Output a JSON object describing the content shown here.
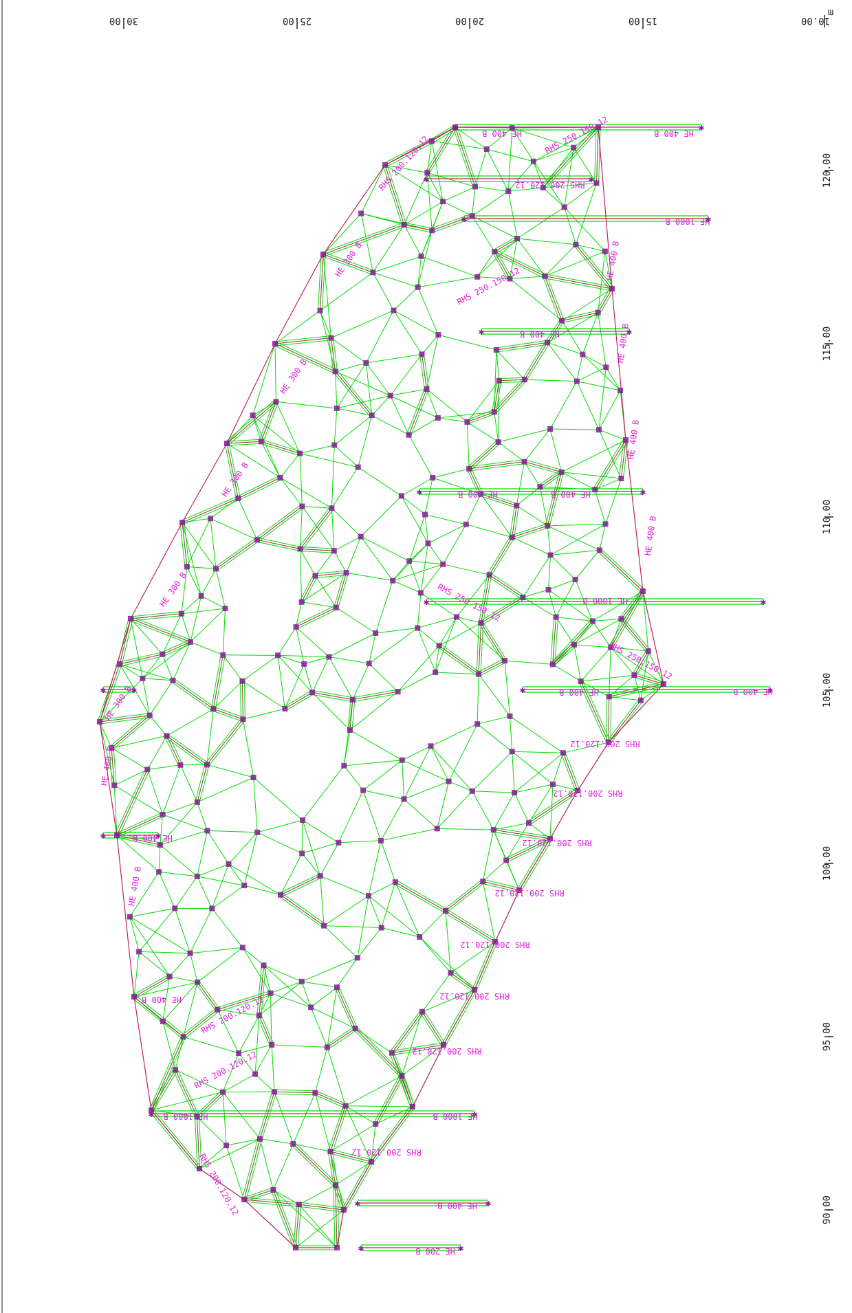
{
  "colors": {
    "background": "#ffffff",
    "frame": "#444444",
    "shell": "#00dd00",
    "member_axis": "#c02060",
    "node": "#8a1a9a",
    "label": "#e020e0",
    "axis_text": "#222222"
  },
  "top_axis": {
    "unit": "m",
    "ticks": [
      "30.00",
      "25.00",
      "20.00",
      "15.00",
      "10.00"
    ]
  },
  "right_axis": {
    "ticks": [
      "120.00",
      "115.00",
      "110.00",
      "105.00",
      "100.00",
      "95.00",
      "90.00"
    ]
  },
  "member_labels": [
    "HE 400 B",
    "HE 400 B",
    "RHS 250.150.12",
    "RHS 200.120.12",
    "RHS 200.120.12",
    "HE 1000 B",
    "HE 400 B",
    "HE 400 B",
    "RHS 250.150.12",
    "HE 400 B",
    "HE 300 B",
    "HE 300 B",
    "HE 300 B",
    "HE 400 B",
    "HE 400 B",
    "HE 400 B",
    "HE 300 B",
    "HE 400 B",
    "HE 1000 B",
    "RHS 250.150.12",
    "RHS 250.150.12",
    "HE 400 B",
    "HE 400 B",
    "HE 400 B",
    "RHS 200.120.12",
    "RHS 200.120.12",
    "RHS 200.120.12",
    "RHS 200.120.12",
    "RHS 200.120.12",
    "RHS 200.120.12",
    "RHS 200.120.12",
    "HE 400 B",
    "HE 400 B",
    "HE 400 B",
    "HE 300 B",
    "RHS 200.120.12",
    "RHS 200.120.12",
    "HE 1000 B",
    "HE 1000 B",
    "RHS 200.120.12",
    "HE 400 B",
    "HE 200 B",
    "RHS 200.120.12"
  ]
}
